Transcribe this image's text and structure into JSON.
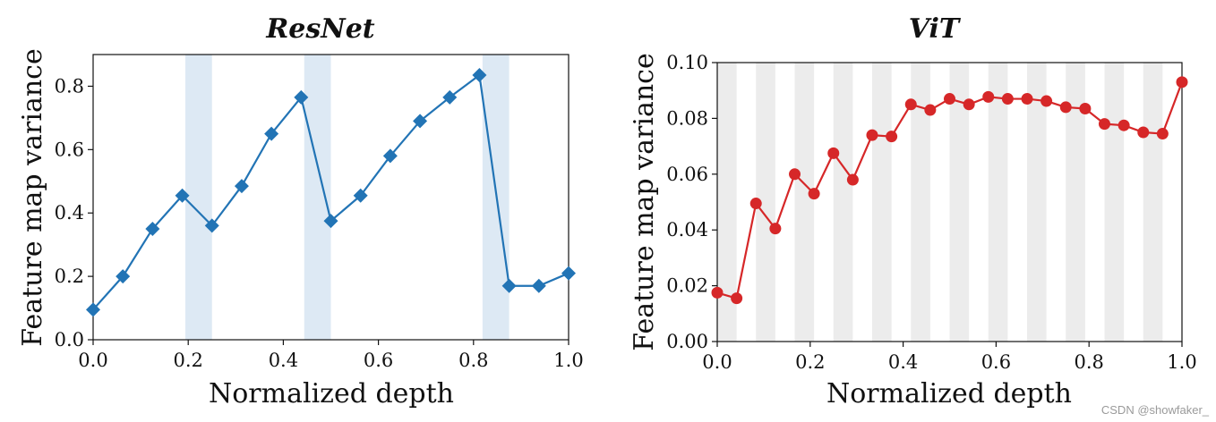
{
  "chart_data": [
    {
      "type": "line",
      "title": "ResNet",
      "xlabel": "Normalized depth",
      "ylabel": "Feature map variance",
      "xlim": [
        0,
        1
      ],
      "ylim": [
        0,
        0.9
      ],
      "xticks": [
        0.0,
        0.2,
        0.4,
        0.6,
        0.8,
        1.0
      ],
      "xtick_labels": [
        "0.0",
        "0.2",
        "0.4",
        "0.6",
        "0.8",
        "1.0"
      ],
      "yticks": [
        0.0,
        0.2,
        0.4,
        0.6,
        0.8
      ],
      "ytick_labels": [
        "0.0",
        "0.2",
        "0.4",
        "0.6",
        "0.8"
      ],
      "marker": "diamond",
      "color": "#2274b5",
      "band_color": "#dde9f4",
      "bands": [
        [
          0.194,
          0.25
        ],
        [
          0.444,
          0.5
        ],
        [
          0.819,
          0.875
        ]
      ],
      "series": [
        {
          "name": "ResNet",
          "x": [
            0.0,
            0.0625,
            0.125,
            0.1875,
            0.25,
            0.3125,
            0.375,
            0.4375,
            0.5,
            0.5625,
            0.625,
            0.6875,
            0.75,
            0.8125,
            0.875,
            0.9375,
            1.0
          ],
          "y": [
            0.095,
            0.2,
            0.35,
            0.455,
            0.36,
            0.485,
            0.65,
            0.765,
            0.375,
            0.455,
            0.58,
            0.69,
            0.765,
            0.835,
            0.17,
            0.17,
            0.21
          ]
        }
      ]
    },
    {
      "type": "line",
      "title": "ViT",
      "xlabel": "Normalized depth",
      "ylabel": "Feature map variance",
      "xlim": [
        0,
        1
      ],
      "ylim": [
        0,
        0.1
      ],
      "xticks": [
        0.0,
        0.2,
        0.4,
        0.6,
        0.8,
        1.0
      ],
      "xtick_labels": [
        "0.0",
        "0.2",
        "0.4",
        "0.6",
        "0.8",
        "1.0"
      ],
      "yticks": [
        0.0,
        0.02,
        0.04,
        0.06,
        0.08,
        0.1
      ],
      "ytick_labels": [
        "0.00",
        "0.02",
        "0.04",
        "0.06",
        "0.08",
        "0.10"
      ],
      "marker": "circle",
      "color": "#d62728",
      "band_color": "#ececec",
      "bands": [
        [
          0.0,
          0.0417
        ],
        [
          0.0833,
          0.125
        ],
        [
          0.1667,
          0.2083
        ],
        [
          0.25,
          0.2917
        ],
        [
          0.3333,
          0.375
        ],
        [
          0.4167,
          0.4583
        ],
        [
          0.5,
          0.5417
        ],
        [
          0.5833,
          0.625
        ],
        [
          0.6667,
          0.7083
        ],
        [
          0.75,
          0.7917
        ],
        [
          0.8333,
          0.875
        ],
        [
          0.9167,
          0.9583
        ]
      ],
      "series": [
        {
          "name": "ViT",
          "x": [
            0.0,
            0.0417,
            0.0833,
            0.125,
            0.1667,
            0.2083,
            0.25,
            0.2917,
            0.3333,
            0.375,
            0.4167,
            0.4583,
            0.5,
            0.5417,
            0.5833,
            0.625,
            0.6667,
            0.7083,
            0.75,
            0.7917,
            0.8333,
            0.875,
            0.9167,
            0.9583,
            1.0
          ],
          "y": [
            0.0175,
            0.0155,
            0.0495,
            0.0405,
            0.06,
            0.053,
            0.0675,
            0.058,
            0.074,
            0.0735,
            0.085,
            0.083,
            0.087,
            0.085,
            0.0877,
            0.087,
            0.087,
            0.0862,
            0.084,
            0.0835,
            0.078,
            0.0775,
            0.075,
            0.0745,
            0.093
          ]
        }
      ]
    }
  ],
  "watermark": "CSDN @showfaker_"
}
